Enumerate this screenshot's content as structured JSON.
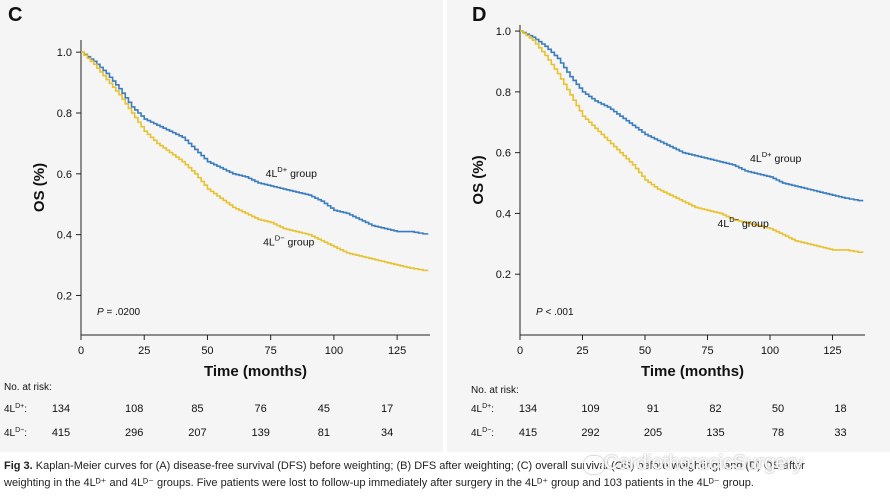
{
  "panels": [
    {
      "letter": "C",
      "p_value_label": "P",
      "p_value_text": " = .0200",
      "ylabel": "OS (%)",
      "xlabel": "Time (months)",
      "risk_title": "No. at risk:",
      "risk_rows": [
        {
          "label_base": "4L",
          "label_sup": "D+",
          "label_suffix": ":",
          "values": [
            "134",
            "108",
            "85",
            "76",
            "45",
            "17"
          ]
        },
        {
          "label_base": "4L",
          "label_sup": "D−",
          "label_suffix": ":",
          "values": [
            "415",
            "296",
            "207",
            "139",
            "81",
            "34"
          ]
        }
      ]
    },
    {
      "letter": "D",
      "p_value_label": "P",
      "p_value_text": " < .001",
      "ylabel": "OS (%)",
      "xlabel": "Time (months)",
      "risk_title": "No. at risk:",
      "risk_rows": [
        {
          "label_base": "4L",
          "label_sup": "D+",
          "label_suffix": ":",
          "values": [
            "134",
            "109",
            "91",
            "82",
            "50",
            "18"
          ]
        },
        {
          "label_base": "4L",
          "label_sup": "D−",
          "label_suffix": ":",
          "values": [
            "415",
            "292",
            "205",
            "135",
            "78",
            "33"
          ]
        }
      ]
    }
  ],
  "caption": {
    "bold": "Fig 3.",
    "line1": " Kaplan-Meier curves for (A) disease-free survival (DFS) before weighting; (B) DFS after weighting; (C) overall survival (OS) before weighting; and (D) OS after",
    "line2": "weighting in the 4Lᴰ⁺ and 4Lᴰ⁻ groups. Five patients were lost to follow-up immediately after surgery in the 4Lᴰ⁺ group and 103 patients in the 4Lᴰ⁻ group."
  },
  "watermark": "CardiothoracicSurgery",
  "colors": {
    "dplus": "#3a7cc2",
    "dminus": "#e8c230"
  },
  "chart_data": [
    {
      "type": "line",
      "title": "C",
      "xlabel": "Time (months)",
      "ylabel": "OS (%)",
      "xlim": [
        0,
        138
      ],
      "ylim": [
        0.07,
        1.04
      ],
      "xticks": [
        0,
        25,
        50,
        75,
        100,
        125
      ],
      "yticks": [
        0.2,
        0.4,
        0.6,
        0.8,
        1.0
      ],
      "annotation": "P = .0200",
      "series": [
        {
          "name": "4L D+ group",
          "label_base": "4L",
          "label_sup": "D+",
          "label_suffix": " group",
          "color": "#3a7cc2",
          "x": [
            0,
            5,
            10,
            15,
            20,
            25,
            30,
            35,
            40,
            45,
            50,
            55,
            60,
            65,
            70,
            75,
            80,
            85,
            90,
            95,
            100,
            105,
            110,
            115,
            120,
            125,
            130,
            137
          ],
          "y": [
            1.0,
            0.97,
            0.93,
            0.88,
            0.82,
            0.78,
            0.76,
            0.74,
            0.72,
            0.68,
            0.64,
            0.62,
            0.6,
            0.59,
            0.57,
            0.56,
            0.55,
            0.54,
            0.53,
            0.51,
            0.48,
            0.47,
            0.45,
            0.43,
            0.42,
            0.41,
            0.41,
            0.4
          ],
          "label_at": [
            73,
            0.59
          ]
        },
        {
          "name": "4L D− group",
          "label_base": "4L",
          "label_sup": "D−",
          "label_suffix": " group",
          "color": "#e8c230",
          "x": [
            0,
            5,
            10,
            15,
            20,
            25,
            30,
            35,
            40,
            45,
            50,
            55,
            60,
            65,
            70,
            75,
            80,
            85,
            90,
            95,
            100,
            105,
            110,
            115,
            120,
            125,
            130,
            137
          ],
          "y": [
            1.0,
            0.96,
            0.91,
            0.86,
            0.8,
            0.74,
            0.7,
            0.67,
            0.64,
            0.6,
            0.55,
            0.52,
            0.49,
            0.47,
            0.45,
            0.44,
            0.42,
            0.41,
            0.4,
            0.38,
            0.36,
            0.34,
            0.33,
            0.32,
            0.31,
            0.3,
            0.29,
            0.28
          ],
          "label_at": [
            72,
            0.365
          ]
        }
      ]
    },
    {
      "type": "line",
      "title": "D",
      "xlabel": "Time (months)",
      "ylabel": "OS (%)",
      "xlim": [
        0,
        138
      ],
      "ylim": [
        0.0,
        1.02
      ],
      "xticks": [
        0,
        25,
        50,
        75,
        100,
        125
      ],
      "yticks": [
        0.2,
        0.4,
        0.6,
        0.8,
        1.0
      ],
      "annotation": "P < .001",
      "series": [
        {
          "name": "4L D+ group",
          "label_base": "4L",
          "label_sup": "D+",
          "label_suffix": " group",
          "color": "#3a7cc2",
          "x": [
            0,
            5,
            10,
            15,
            20,
            25,
            30,
            35,
            40,
            45,
            50,
            55,
            60,
            65,
            70,
            75,
            80,
            85,
            90,
            95,
            100,
            105,
            110,
            115,
            120,
            125,
            130,
            137
          ],
          "y": [
            1.0,
            0.98,
            0.95,
            0.91,
            0.85,
            0.8,
            0.77,
            0.75,
            0.72,
            0.69,
            0.66,
            0.64,
            0.62,
            0.6,
            0.59,
            0.58,
            0.57,
            0.56,
            0.54,
            0.53,
            0.52,
            0.5,
            0.49,
            0.48,
            0.47,
            0.46,
            0.45,
            0.44
          ],
          "label_at": [
            92,
            0.57
          ]
        },
        {
          "name": "4L D− group",
          "label_base": "4L",
          "label_sup": "D−",
          "label_suffix": " group",
          "color": "#e8c230",
          "x": [
            0,
            5,
            10,
            15,
            20,
            25,
            30,
            35,
            40,
            45,
            50,
            55,
            60,
            65,
            70,
            75,
            80,
            85,
            90,
            95,
            100,
            105,
            110,
            115,
            120,
            125,
            130,
            137
          ],
          "y": [
            1.0,
            0.97,
            0.92,
            0.86,
            0.79,
            0.72,
            0.68,
            0.64,
            0.6,
            0.56,
            0.51,
            0.48,
            0.46,
            0.44,
            0.42,
            0.41,
            0.4,
            0.38,
            0.37,
            0.36,
            0.35,
            0.33,
            0.31,
            0.3,
            0.29,
            0.28,
            0.28,
            0.27
          ],
          "label_at": [
            79,
            0.355
          ]
        }
      ]
    }
  ]
}
